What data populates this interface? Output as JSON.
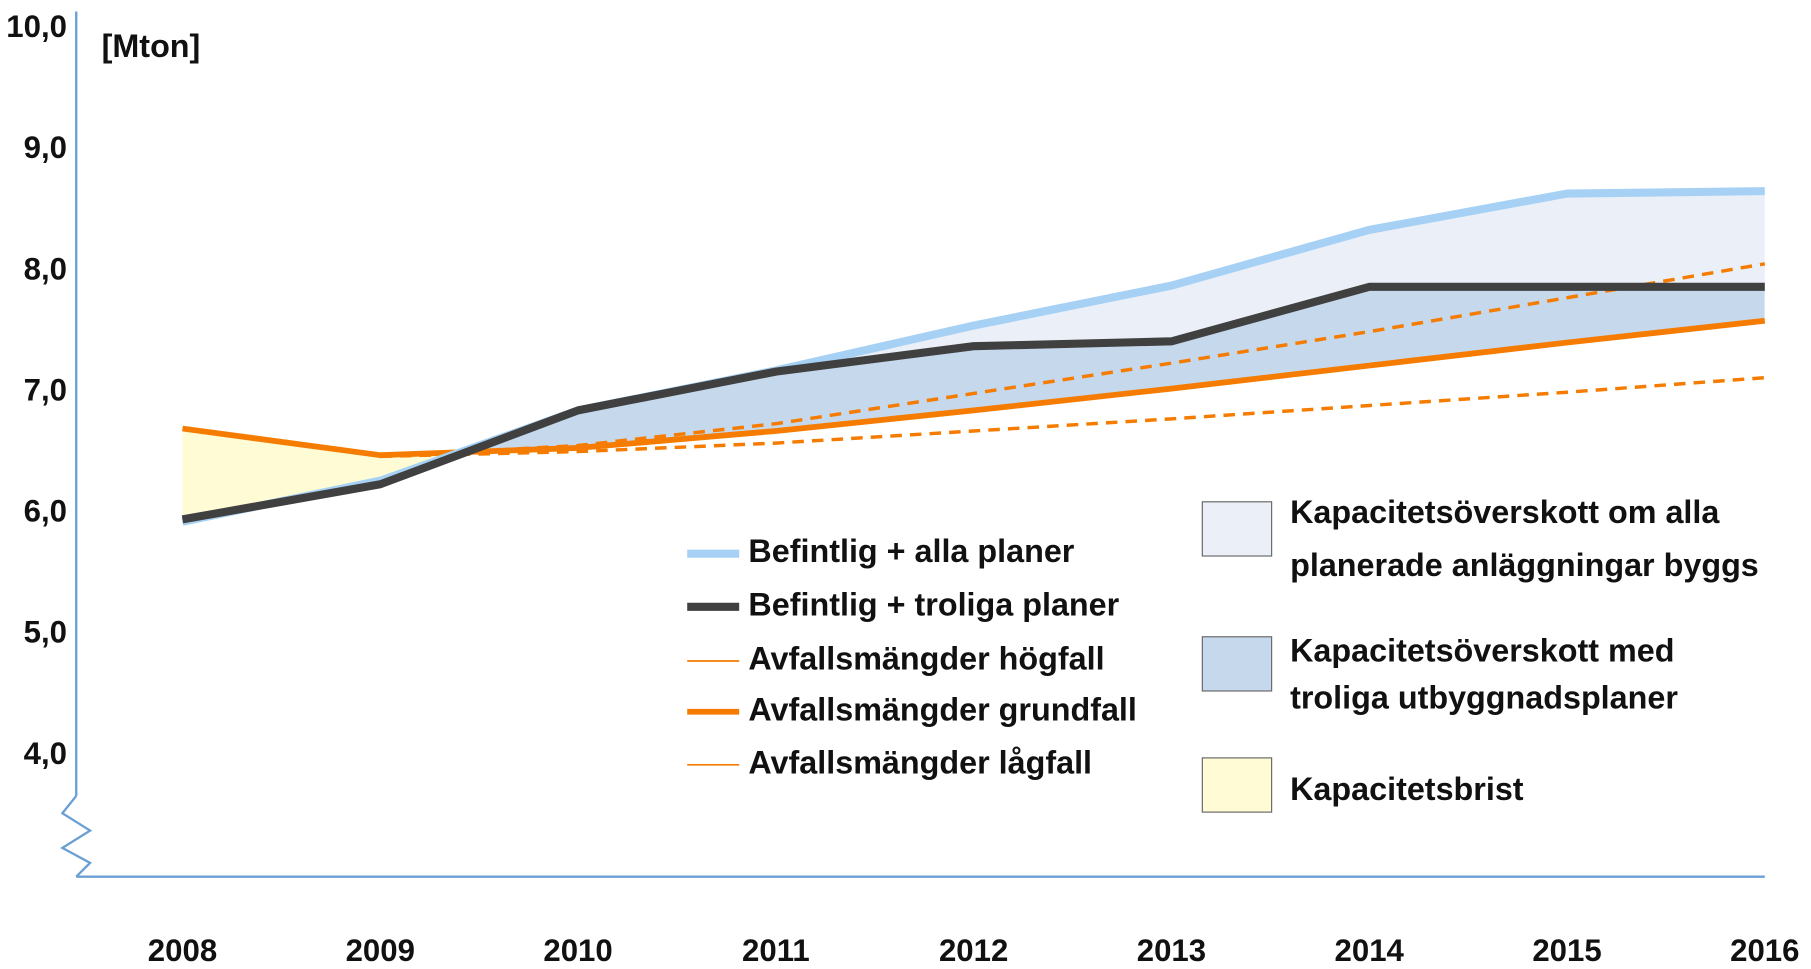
{
  "chart_data": {
    "type": "line",
    "y_label": "[Mton]",
    "categories": [
      "2008",
      "2009",
      "2010",
      "2011",
      "2012",
      "2013",
      "2014",
      "2015",
      "2016"
    ],
    "ylim": [
      3,
      10
    ],
    "yticks": [
      {
        "value": 4,
        "label": "4,0"
      },
      {
        "value": 5,
        "label": "5,0"
      },
      {
        "value": 6,
        "label": "6,0"
      },
      {
        "value": 7,
        "label": "7,0"
      },
      {
        "value": 8,
        "label": "8,0"
      },
      {
        "value": 9,
        "label": "9,0"
      },
      {
        "value": 10,
        "label": "10,0"
      }
    ],
    "axis_break": true,
    "series": [
      {
        "name": "Befintlig + alla planer",
        "color": "#a6d1f5",
        "width": 7,
        "dashed": false,
        "values": [
          5.93,
          6.27,
          6.85,
          7.18,
          7.55,
          7.88,
          8.34,
          8.64,
          8.66
        ]
      },
      {
        "name": "Befintlig + troliga planer",
        "color": "#404040",
        "width": 7,
        "dashed": false,
        "values": [
          5.95,
          6.24,
          6.85,
          7.17,
          7.38,
          7.42,
          7.87,
          7.87,
          7.87
        ]
      },
      {
        "name": "Avfallsmängder högfall",
        "color": "#f57c00",
        "width": 3,
        "dashed": true,
        "values": [
          null,
          6.47,
          6.56,
          6.74,
          6.99,
          7.24,
          7.5,
          7.78,
          8.06
        ]
      },
      {
        "name": "Avfallsmängder grundfall",
        "color": "#f57c00",
        "width": 5,
        "dashed": false,
        "values": [
          6.7,
          6.48,
          6.54,
          6.68,
          6.85,
          7.03,
          7.22,
          7.41,
          7.59
        ]
      },
      {
        "name": "Avfallsmängder lågfall",
        "color": "#f57c00",
        "width": 3,
        "dashed": true,
        "values": [
          null,
          6.47,
          6.51,
          6.58,
          6.68,
          6.78,
          6.89,
          7.0,
          7.12
        ]
      }
    ],
    "areas": [
      {
        "label": [
          "Kapacitetsöverskott om alla",
          "planerade anläggningar byggs"
        ],
        "color": "#ebf0f8"
      },
      {
        "label": [
          "Kapacitetsöverskott med",
          "troliga utbyggnadsplaner"
        ],
        "color": "#c6d8ec"
      },
      {
        "label": [
          "Kapacitetsbrist"
        ],
        "color": "#fffcd5"
      }
    ],
    "axis_color": "#6a9fd4"
  }
}
